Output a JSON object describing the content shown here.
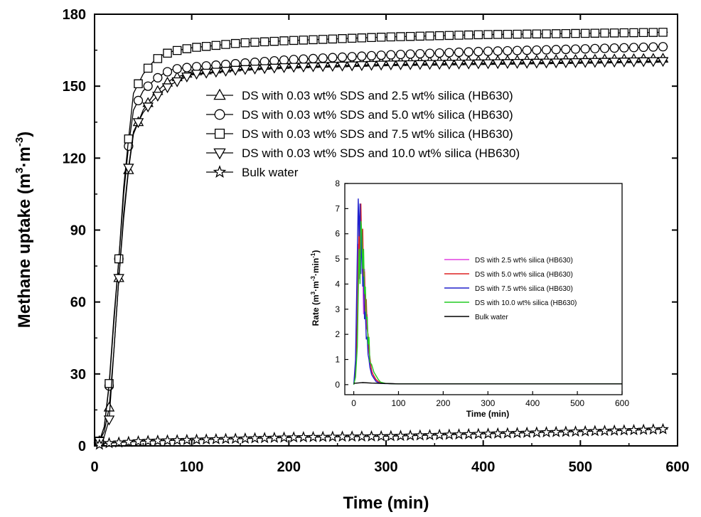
{
  "chart_data": [
    {
      "type": "line",
      "title": "",
      "xlabel": "Time (min)",
      "ylabel_main": "Methane uptake (m",
      "ylabel_unit_parts": [
        "3",
        "·m",
        "-3",
        ")"
      ],
      "xlim": [
        0,
        600
      ],
      "ylim": [
        0,
        180
      ],
      "xticks": [
        "0",
        "100",
        "200",
        "300",
        "400",
        "500",
        "600"
      ],
      "yticks": [
        "0",
        "30",
        "60",
        "90",
        "120",
        "150",
        "180"
      ],
      "legend_position": "upper-left-center",
      "series": [
        {
          "name": "DS with 0.03 wt% SDS and 2.5 wt% silica (HB630)",
          "marker": "triangle-up",
          "x": [
            0,
            5,
            10,
            15,
            20,
            25,
            30,
            35,
            40,
            50,
            60,
            70,
            80,
            100,
            150,
            200,
            300,
            400,
            500,
            590
          ],
          "y": [
            0,
            2,
            6,
            16,
            40,
            70,
            95,
            115,
            130,
            140,
            146,
            150,
            153,
            156,
            158,
            159,
            160,
            160.5,
            161,
            161.5
          ]
        },
        {
          "name": "DS with 0.03 wt% SDS and 5.0 wt% silica (HB630)",
          "marker": "circle",
          "x": [
            0,
            5,
            10,
            15,
            20,
            25,
            30,
            35,
            40,
            50,
            60,
            70,
            80,
            100,
            150,
            200,
            300,
            400,
            500,
            590
          ],
          "y": [
            0,
            2,
            8,
            25,
            52,
            78,
            105,
            125,
            140,
            148,
            152,
            155,
            157,
            158,
            159.5,
            161,
            163,
            164.5,
            165.5,
            166.5
          ]
        },
        {
          "name": "DS with 0.03 wt% SDS and 7.5 wt% silica (HB630)",
          "marker": "square",
          "x": [
            0,
            5,
            10,
            15,
            20,
            25,
            30,
            35,
            40,
            50,
            60,
            70,
            80,
            100,
            150,
            200,
            300,
            400,
            500,
            590
          ],
          "y": [
            0,
            2,
            8,
            26,
            54,
            78,
            108,
            128,
            147,
            155,
            160,
            163,
            164.5,
            166,
            168,
            169,
            170.5,
            171.5,
            172,
            172.5
          ]
        },
        {
          "name": "DS with 0.03 wt% SDS and 10.0 wt% silica (HB630)",
          "marker": "triangle-down",
          "x": [
            0,
            5,
            10,
            15,
            20,
            25,
            30,
            35,
            40,
            50,
            60,
            70,
            80,
            100,
            150,
            200,
            300,
            400,
            500,
            590
          ],
          "y": [
            0,
            2,
            4,
            11,
            40,
            70,
            97,
            116,
            131,
            139,
            144,
            148,
            151,
            155,
            157,
            158,
            159,
            159.5,
            160,
            160.5
          ]
        },
        {
          "name": "Bulk water",
          "marker": "star",
          "x": [
            0,
            10,
            30,
            50,
            100,
            150,
            200,
            250,
            300,
            350,
            400,
            450,
            500,
            550,
            590
          ],
          "y": [
            0,
            1,
            1.5,
            2,
            2.5,
            3,
            3.5,
            3.8,
            4,
            4.5,
            5,
            5.5,
            6,
            6.5,
            7
          ]
        }
      ],
      "colors": {
        "axis": "#000000",
        "series_line": "#000000",
        "marker_fill": "#ffffff"
      }
    },
    {
      "type": "line",
      "title": "",
      "inset": true,
      "xlabel": "Time (min)",
      "ylabel_prefix": "Rate (m",
      "ylabel_unit_parts": [
        "3",
        "·m",
        "-3",
        "·min",
        "-1",
        ")"
      ],
      "xlim": [
        -20,
        600
      ],
      "ylim": [
        -0.4,
        8
      ],
      "xticks": [
        "0",
        "100",
        "200",
        "300",
        "400",
        "500",
        "600"
      ],
      "yticks": [
        "0",
        "1",
        "2",
        "3",
        "4",
        "5",
        "6",
        "7",
        "8"
      ],
      "legend_position": "center-right",
      "series": [
        {
          "name": "DS with 2.5 wt% silica (HB630)",
          "color": "#e040e0",
          "x": [
            0,
            4,
            8,
            10,
            12,
            14,
            16,
            18,
            20,
            22,
            24,
            26,
            28,
            30,
            32,
            34,
            36,
            40,
            45,
            50,
            55,
            60,
            70,
            80,
            100,
            150,
            200,
            300,
            400,
            500,
            600
          ],
          "y": [
            0,
            0.6,
            3.5,
            5.6,
            4.2,
            6.8,
            5.0,
            5.9,
            4.4,
            2.8,
            4.6,
            3.1,
            2.2,
            2.8,
            1.4,
            1.8,
            0.9,
            0.6,
            0.3,
            0.15,
            0.1,
            0.06,
            0.05,
            0.04,
            0.03,
            0.03,
            0.03,
            0.03,
            0.03,
            0.03,
            0.03
          ]
        },
        {
          "name": "DS with 5.0 wt% silica (HB630)",
          "color": "#dd2020",
          "x": [
            0,
            4,
            8,
            10,
            12,
            14,
            16,
            18,
            20,
            22,
            24,
            26,
            28,
            30,
            32,
            34,
            36,
            40,
            45,
            50,
            55,
            60,
            70,
            80,
            100,
            150,
            200,
            300,
            400,
            500,
            600
          ],
          "y": [
            0,
            0.5,
            2.5,
            4.6,
            6.3,
            4.6,
            7.2,
            5.3,
            6.2,
            3.9,
            4.5,
            2.9,
            3.4,
            2.2,
            2.0,
            1.3,
            1.1,
            0.5,
            0.35,
            0.2,
            0.12,
            0.08,
            0.05,
            0.04,
            0.03,
            0.03,
            0.03,
            0.03,
            0.03,
            0.03,
            0.03
          ]
        },
        {
          "name": "DS with 7.5 wt% silica (HB630)",
          "color": "#2020cc",
          "x": [
            0,
            4,
            8,
            10,
            12,
            14,
            16,
            18,
            20,
            22,
            24,
            26,
            28,
            30,
            32,
            34,
            36,
            40,
            45,
            50,
            55,
            60,
            70,
            80,
            100,
            150,
            200,
            300,
            400,
            500,
            600
          ],
          "y": [
            0,
            1.0,
            5.2,
            7.4,
            5.9,
            7.2,
            4.4,
            6.1,
            3.9,
            4.3,
            2.6,
            2.9,
            1.8,
            1.9,
            1.2,
            1.0,
            0.7,
            0.4,
            0.25,
            0.12,
            0.08,
            0.05,
            0.04,
            0.04,
            0.03,
            0.03,
            0.03,
            0.03,
            0.03,
            0.03,
            0.03
          ]
        },
        {
          "name": "DS with 10.0 wt% silica (HB630)",
          "color": "#22cc22",
          "x": [
            0,
            4,
            8,
            10,
            12,
            14,
            16,
            18,
            20,
            22,
            24,
            26,
            28,
            30,
            32,
            34,
            36,
            40,
            45,
            50,
            55,
            60,
            70,
            80,
            100,
            150,
            200,
            300,
            400,
            500,
            600
          ],
          "y": [
            0,
            0.3,
            1.5,
            3.6,
            5.4,
            4.0,
            6.5,
            6.1,
            4.6,
            5.4,
            3.6,
            3.9,
            2.6,
            2.7,
            1.6,
            1.9,
            0.9,
            0.8,
            0.5,
            0.35,
            0.2,
            0.1,
            0.05,
            0.04,
            0.03,
            0.03,
            0.03,
            0.03,
            0.03,
            0.03,
            0.03
          ]
        },
        {
          "name": "Bulk water",
          "color": "#000000",
          "x": [
            0,
            20,
            40,
            60,
            80,
            100,
            150,
            200,
            300,
            400,
            500,
            600
          ],
          "y": [
            0.05,
            0.08,
            0.06,
            0.05,
            0.04,
            0.03,
            0.03,
            0.03,
            0.03,
            0.03,
            0.03,
            0.03
          ]
        }
      ]
    }
  ]
}
